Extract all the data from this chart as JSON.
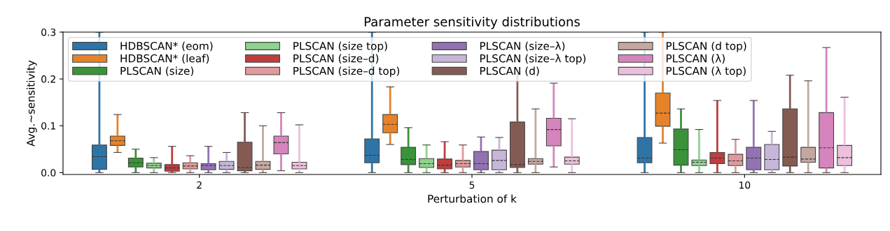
{
  "chart_data": {
    "type": "box",
    "title": "Parameter sensitivity distributions",
    "xlabel": "Perturbation of k",
    "ylabel": "Avg.~sensitivity",
    "categories": [
      "2",
      "5",
      "10"
    ],
    "ylim": [
      -0.004,
      0.3
    ],
    "yticks": [
      {
        "value": 0,
        "label": "0.0"
      },
      {
        "value": 0.1,
        "label": "0.1"
      },
      {
        "value": 0.2,
        "label": "0.2"
      },
      {
        "value": 0.3,
        "label": "0.3"
      }
    ],
    "grid": false,
    "legend": "top left",
    "series": [
      {
        "name": "HDBSCAN* (eom)",
        "color": "#2f74a7",
        "boxes": [
          {
            "low": 0,
            "q1": 0.007,
            "median": 0.034,
            "q3": 0.059,
            "high": 0.3
          },
          {
            "low": 0,
            "q1": 0.021,
            "median": 0.037,
            "q3": 0.072,
            "high": 0.3
          },
          {
            "low": 0,
            "q1": 0.021,
            "median": 0.031,
            "q3": 0.075,
            "high": 0.3
          }
        ]
      },
      {
        "name": "HDBSCAN* (leaf)",
        "color": "#e5832a",
        "boxes": [
          {
            "low": 0.043,
            "q1": 0.058,
            "median": 0.068,
            "q3": 0.078,
            "high": 0.124
          },
          {
            "low": 0.06,
            "q1": 0.085,
            "median": 0.103,
            "q3": 0.124,
            "high": 0.183
          },
          {
            "low": 0.063,
            "q1": 0.099,
            "median": 0.127,
            "q3": 0.17,
            "high": 0.3
          }
        ]
      },
      {
        "name": "PLSCAN (size)",
        "color": "#3a923a",
        "boxes": [
          {
            "low": 0,
            "q1": 0.012,
            "median": 0.021,
            "q3": 0.031,
            "high": 0.05
          },
          {
            "low": 0,
            "q1": 0.017,
            "median": 0.028,
            "q3": 0.054,
            "high": 0.096
          },
          {
            "low": 0,
            "q1": 0.016,
            "median": 0.049,
            "q3": 0.093,
            "high": 0.136
          }
        ]
      },
      {
        "name": "PLSCAN (size top)",
        "color": "#8fd28f",
        "boxes": [
          {
            "low": 0,
            "q1": 0.01,
            "median": 0.015,
            "q3": 0.02,
            "high": 0.032
          },
          {
            "low": 0,
            "q1": 0.011,
            "median": 0.019,
            "q3": 0.03,
            "high": 0.059
          },
          {
            "low": 0,
            "q1": 0.015,
            "median": 0.022,
            "q3": 0.027,
            "high": 0.092
          }
        ]
      },
      {
        "name": "PLSCAN (size–d)",
        "color": "#c03d3e",
        "boxes": [
          {
            "low": 0,
            "q1": 0.003,
            "median": 0.01,
            "q3": 0.017,
            "high": 0.056
          },
          {
            "low": 0,
            "q1": 0.008,
            "median": 0.016,
            "q3": 0.029,
            "high": 0.066
          },
          {
            "low": 0,
            "q1": 0.019,
            "median": 0.031,
            "q3": 0.043,
            "high": 0.154
          }
        ]
      },
      {
        "name": "PLSCAN (size–d top)",
        "color": "#e09a9b",
        "boxes": [
          {
            "low": 0,
            "q1": 0.008,
            "median": 0.014,
            "q3": 0.021,
            "high": 0.036
          },
          {
            "low": 0,
            "q1": 0.012,
            "median": 0.019,
            "q3": 0.026,
            "high": 0.059
          },
          {
            "low": 0,
            "q1": 0.015,
            "median": 0.025,
            "q3": 0.039,
            "high": 0.071
          }
        ]
      },
      {
        "name": "PLSCAN (size–λ)",
        "color": "#9372b2",
        "boxes": [
          {
            "low": 0,
            "q1": 0.006,
            "median": 0.015,
            "q3": 0.019,
            "high": 0.056
          },
          {
            "low": 0,
            "q1": 0.006,
            "median": 0.019,
            "q3": 0.045,
            "high": 0.076
          },
          {
            "low": 0,
            "q1": 0.006,
            "median": 0.031,
            "q3": 0.054,
            "high": 0.154
          }
        ]
      },
      {
        "name": "PLSCAN (size–λ top)",
        "color": "#c6b6d8",
        "boxes": [
          {
            "low": 0,
            "q1": 0.007,
            "median": 0.015,
            "q3": 0.024,
            "high": 0.043
          },
          {
            "low": 0,
            "q1": 0.006,
            "median": 0.026,
            "q3": 0.048,
            "high": 0.075
          },
          {
            "low": 0,
            "q1": 0.006,
            "median": 0.028,
            "q3": 0.06,
            "high": 0.088
          }
        ]
      },
      {
        "name": "PLSCAN (d)",
        "color": "#845b53",
        "boxes": [
          {
            "low": 0,
            "q1": 0.004,
            "median": 0.011,
            "q3": 0.065,
            "high": 0.128
          },
          {
            "low": 0,
            "q1": 0.011,
            "median": 0.017,
            "q3": 0.108,
            "high": 0.21
          },
          {
            "low": 0,
            "q1": 0.014,
            "median": 0.033,
            "q3": 0.136,
            "high": 0.208
          }
        ]
      },
      {
        "name": "PLSCAN (d top)",
        "color": "#c5a7a1",
        "boxes": [
          {
            "low": 0,
            "q1": 0.007,
            "median": 0.016,
            "q3": 0.024,
            "high": 0.1
          },
          {
            "low": 0,
            "q1": 0.018,
            "median": 0.024,
            "q3": 0.03,
            "high": 0.136
          },
          {
            "low": 0,
            "q1": 0.022,
            "median": 0.029,
            "q3": 0.054,
            "high": 0.196
          }
        ]
      },
      {
        "name": "PLSCAN (λ)",
        "color": "#d684bd",
        "boxes": [
          {
            "low": 0.004,
            "q1": 0.04,
            "median": 0.064,
            "q3": 0.078,
            "high": 0.128
          },
          {
            "low": 0.012,
            "q1": 0.057,
            "median": 0.092,
            "q3": 0.116,
            "high": 0.191
          },
          {
            "low": 0,
            "q1": 0.01,
            "median": 0.053,
            "q3": 0.128,
            "high": 0.267
          }
        ]
      },
      {
        "name": "PLSCAN (λ top)",
        "color": "#ebc0dc",
        "boxes": [
          {
            "low": 0,
            "q1": 0.008,
            "median": 0.015,
            "q3": 0.022,
            "high": 0.102
          },
          {
            "low": 0,
            "q1": 0.018,
            "median": 0.025,
            "q3": 0.033,
            "high": 0.115
          },
          {
            "low": 0,
            "q1": 0.015,
            "median": 0.032,
            "q3": 0.058,
            "high": 0.161
          }
        ]
      }
    ]
  }
}
